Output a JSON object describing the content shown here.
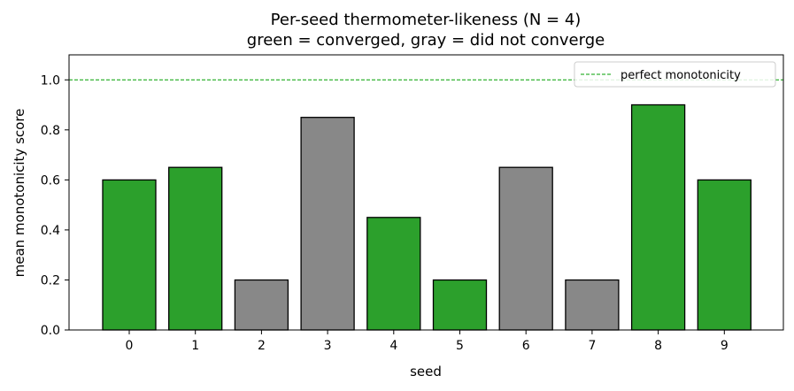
{
  "chart_data": {
    "type": "bar",
    "title": "Per-seed thermometer-likeness  (N = 4)",
    "subtitle": "green = converged, gray = did not converge",
    "xlabel": "seed",
    "ylabel": "mean monotonicity score",
    "categories": [
      "0",
      "1",
      "2",
      "3",
      "4",
      "5",
      "6",
      "7",
      "8",
      "9"
    ],
    "values": [
      0.6,
      0.65,
      0.2,
      0.85,
      0.45,
      0.2,
      0.65,
      0.2,
      0.9,
      0.6
    ],
    "converged": [
      true,
      true,
      false,
      false,
      true,
      true,
      false,
      false,
      true,
      true
    ],
    "colors": {
      "converged": "#2ca02c",
      "not_converged": "#888888",
      "edge": "#000000",
      "reference": "#00a000"
    },
    "ylim": [
      0,
      1.1
    ],
    "yticks": [
      "0.0",
      "0.2",
      "0.4",
      "0.6",
      "0.8",
      "1.0"
    ],
    "reference_line": {
      "y": 1.0,
      "label": "perfect monotonicity",
      "style": "dashed"
    },
    "legend_position": "top-right",
    "grid": false
  }
}
